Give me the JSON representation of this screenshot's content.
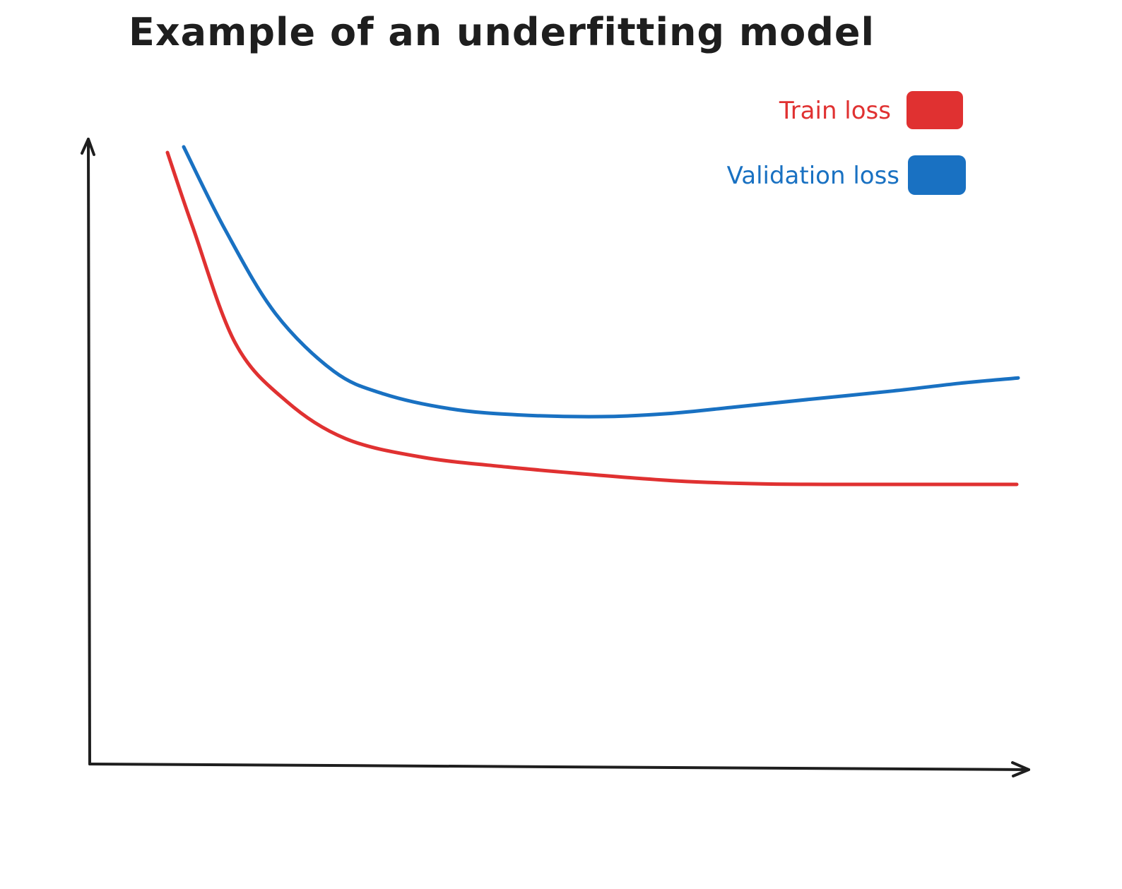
{
  "chart_data": {
    "type": "line",
    "title": "Example of an underfitting model",
    "xlabel": "",
    "ylabel": "",
    "xlim": [
      0,
      100
    ],
    "ylim": [
      0,
      100
    ],
    "grid": false,
    "ticks": false,
    "legend_position": "top-right",
    "series": [
      {
        "name": "Train loss",
        "color": "#e03131",
        "x": [
          0,
          3,
          8,
          14,
          21,
          30,
          40,
          50,
          60,
          70,
          80,
          90,
          100
        ],
        "y": [
          99,
          86,
          66,
          56,
          49.5,
          46.3,
          44.6,
          43.3,
          42.2,
          41.7,
          41.6,
          41.6,
          41.6
        ]
      },
      {
        "name": "Validation loss",
        "color": "#1971c2",
        "x": [
          0,
          5,
          11,
          18,
          24,
          32,
          40,
          50,
          58,
          66,
          75,
          85,
          93,
          100
        ],
        "y": [
          100,
          86,
          72,
          62.3,
          58.5,
          56,
          55,
          54.7,
          55.2,
          56.3,
          57.6,
          59,
          60.3,
          61.2
        ]
      }
    ]
  }
}
